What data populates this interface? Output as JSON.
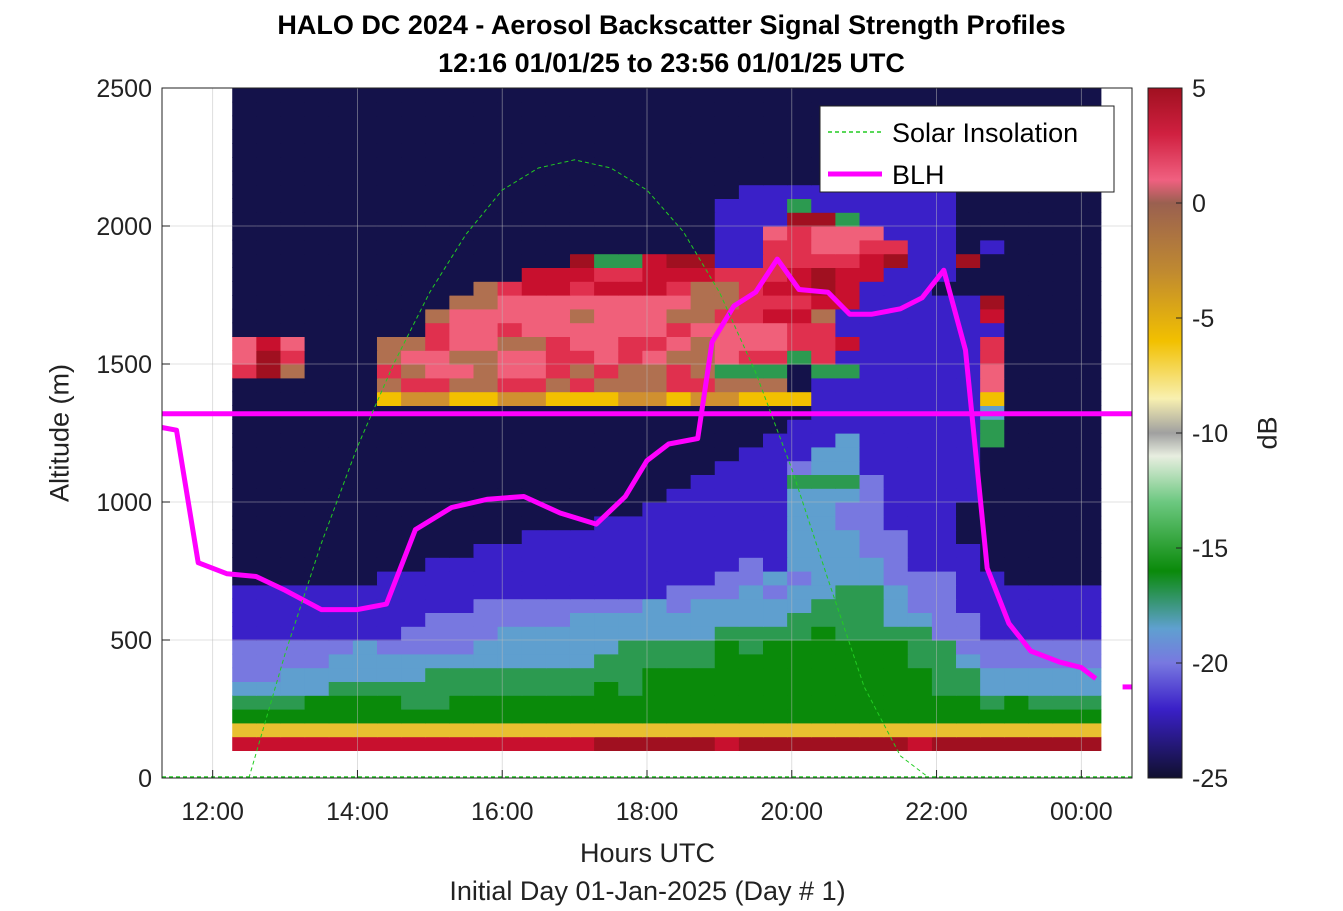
{
  "chart_data": {
    "type": "heatmap",
    "title": "HALO DC 2024 - Aerosol Backscatter Signal Strength Profiles",
    "subtitle": "12:16 01/01/25 to 23:56 01/01/25  UTC",
    "xlabel": "Hours UTC",
    "xsublabel": "Initial Day 01-Jan-2025 (Day # 1)",
    "ylabel": "Altitude (m)",
    "colorbar_label": "dB",
    "xlim_hours": [
      11.3,
      24.7
    ],
    "x_ticks": [
      12,
      14,
      16,
      18,
      20,
      22,
      24
    ],
    "x_tick_labels": [
      "12:00",
      "14:00",
      "16:00",
      "18:00",
      "20:00",
      "22:00",
      "00:00"
    ],
    "ylim": [
      0,
      2500
    ],
    "y_ticks": [
      0,
      500,
      1000,
      1500,
      2000,
      2500
    ],
    "y_tick_labels": [
      "0",
      "500",
      "1000",
      "1500",
      "2000",
      "2500"
    ],
    "clim": [
      -25,
      5
    ],
    "colorbar_ticks": [
      5,
      0,
      -5,
      -10,
      -15,
      -20,
      -25
    ],
    "colorbar_tick_labels": [
      "5",
      "0",
      "-5",
      "-10",
      "-15",
      "-20",
      "-25"
    ],
    "grid": true,
    "legend_position": "top-right",
    "legend": [
      {
        "name": "Solar Insolation",
        "style": "dashed",
        "color": "#22cc22"
      },
      {
        "name": "BLH",
        "style": "solid",
        "color": "#ff00ff"
      }
    ],
    "heatmap": {
      "time_start": 12.27,
      "time_step": 0.3333,
      "alt_start": 100,
      "alt_step": 50,
      "rows_low_to_high": [
        "cccccccccccccccbbbbbcbbbbbbbcbbbbbbb",
        "uuuuuuuuuuuuuuuuuuuuuuuuuuuuuuuuuuuu",
        "kkkkkkkkkkkkkkkkkkkkkkkkkkkkkkkkkkkk",
        "mmmkkkkmmkkkkkkkkkkkkkkkkkkkkkkmkmmm",
        "nnnnmmmmmmmmmmmkmkkkkkkkkkkkkmmnnnnn",
        "ppnnnnnnmmmmmmmmmkkkkkkkkkkkkmmnnnnn",
        "ppppnnnnnnnnnnnmmmmmkkkkkkkkmmnppppp",
        "pppppnppppnnnnnnmmmmkmkkkkkkmmpppppp",
        "qqqqqqqppppnnnnnnnnnmmmmkmmmmppqqqqq",
        "qqqqqqqqppppppnnnnnnnnnmmmmnnppqqqqq",
        "qqqqqqqqqqpppppppnpnnnnnmmmnppqqqqqq",
        "qqqqqqqqqqqqqqqqqqpppnpnnmmnppqqqqqq",
        "rrrrrrqqqqqqqqqqqqqqppnpnnnpppqqrrrr",
        "rrrrrrrrqqqqqqqqqqqqqpqnnnnpqqqrrrrr",
        "rrrrrrrrrrqqqqqqqqqqqqqnnnppqqqrrrrr",
        "rrrrrrrrrrrrqqqqqqqqqqqnnnppqqrrrrrr",
        "rrrrrrrrrrrrrrrqqqqqqqqnnppqqqrrrrrr",
        "rrrrrrrrrrrrrrrrrqqqqqqnnppqqqrrrrrr",
        "rrrrrrrrrrrrrrrrrrqqqqqnnnpqqqqrrrrr",
        "rrrrrrrrrrrrrrrrrrrqqqqmmmpqqqqrrrrr",
        "rrrrrrrrrrrrrrrrrrrrqqqpnnqqqqqrrrrr",
        "rrrrrrrrrrrrrrrrrrrrrqqqnnqqqqqrrrrr",
        "rrrrrrrrrrrrrrrrrrrrrrqqqnqqqqqmrrrr",
        "rrrrrrrrrrrrrrrrrrrrrrrqqqqqqqqmrrrr",
        "rrrrrrrrrrrrrrrrrrrrrrrrqqqqqqqnrrrr",
        "rrrrrrhgghhgghhhgghgghhhqqqqqqqhrrrr",
        "rrrrrrfddffddfdfffddfffrqqqqqqqerrrr",
        "dbfrrrdfeefeedfdffdfmmmrmmqqqqqerrrr",
        "ebdrrrfeeffeeddedeffeddmdqqqqqqdrrrr",
        "ecerrrffdeeffdeeddefeeeddcqqqqqdrrrr",
        "rrrrrrrrdeedeeeeeedeeeeddqqqqqqqrrrr",
        "rrrrrrrrfeeeeefeeeffddccfqqqqqqcrrrr",
        "rrrrrrrrrffeeeeeeeeffdddccqqqqqbrrrr",
        "rrrrrrrrrrfdccdcccdffdccbcqqqrrrrrrr",
        "rrrrrrrrrrrrcccddcccdddcbccqqqrrrrrr",
        "rrrrrrrrrrrrrrbmmcbbqqddddcbqqbrrrrr",
        "rrrrrrrrrrrrrrrrrrrrqqddeeddqqrqrrrr",
        "rrrrrrrrrrrrrrrrrrrrqqedeeeqqqrrrrrr",
        "rrrrrrrrrrrrrrrrrrrrqqqbbmqqqqrrrrrr",
        "rrrrrrrrrrrrrrrrrrrrqqqmqqqqqqrrrrrr",
        "rrrrrrrrrrrrrrrrrrrrrqqqqqqqqqrrrrrr",
        "rrrrrrrrrrrrrrrrrrrrrrrrrrrrrrrrrrrr",
        "rrrrrrrrrrrrrrrrrrrrrrrrrrrrrrrrrrrr",
        "rrrrrrrrrrrrrrrrrrrrrrrrrrrrrrrrrrrr",
        "rrrrrrrrrrrrrrrrrrrrrrrrrrrrrrrrrrrr",
        "rrrrrrrrrrrrrrrrrrrrrrrrrrrrrrrrrrrr",
        "rrrrrrrrrrrrrrrrrrrrrrrrrrrrrrrrrrrr",
        "rrrrrrrrrrrrrrrrrrrrrrrrrrrrrrrrrrrr"
      ],
      "palette": {
        "b": "#a01020",
        "c": "#c8102e",
        "d": "#e0304e",
        "e": "#f0607a",
        "f": "#b07050",
        "g": "#d09030",
        "h": "#f2c000",
        "i": "#f0e6c0",
        "k": "#0a8a0a",
        "m": "#2c9a50",
        "n": "#5f9fcf",
        "p": "#7878e0",
        "q": "#3a20c8",
        "r": "#14124a",
        "u": "#e8c030"
      }
    },
    "series": [
      {
        "name": "BLH",
        "x": [
          11.3,
          11.5,
          11.8,
          12.2,
          12.6,
          13.0,
          13.5,
          14.0,
          14.4,
          14.8,
          15.3,
          15.8,
          16.3,
          16.8,
          17.3,
          17.7,
          18.0,
          18.3,
          18.7,
          18.9,
          19.2,
          19.5,
          19.8,
          20.1,
          20.5,
          20.8,
          21.1,
          21.5,
          21.8,
          22.1,
          22.4,
          22.7,
          23.0,
          23.3,
          23.7,
          24.0,
          24.2
        ],
        "y": [
          1270,
          1260,
          780,
          740,
          730,
          680,
          610,
          610,
          630,
          900,
          980,
          1010,
          1020,
          960,
          920,
          1020,
          1150,
          1210,
          1230,
          1580,
          1710,
          1760,
          1880,
          1770,
          1760,
          1680,
          1680,
          1700,
          1740,
          1840,
          1550,
          760,
          560,
          460,
          420,
          400,
          360
        ]
      },
      {
        "name": "BLH",
        "x": [
          11.3,
          24.7
        ],
        "y": [
          1320,
          1320
        ]
      },
      {
        "name": "Solar Insolation",
        "x": [
          12.5,
          13.0,
          13.5,
          14.0,
          14.5,
          15.0,
          15.5,
          16.0,
          16.5,
          17.0,
          17.5,
          18.0,
          18.5,
          19.0,
          19.5,
          20.0,
          20.5,
          21.0,
          21.5,
          21.9
        ],
        "y": [
          0,
          450,
          850,
          1200,
          1500,
          1760,
          1970,
          2130,
          2210,
          2240,
          2210,
          2130,
          1980,
          1760,
          1470,
          1120,
          720,
          330,
          80,
          0
        ]
      }
    ]
  }
}
